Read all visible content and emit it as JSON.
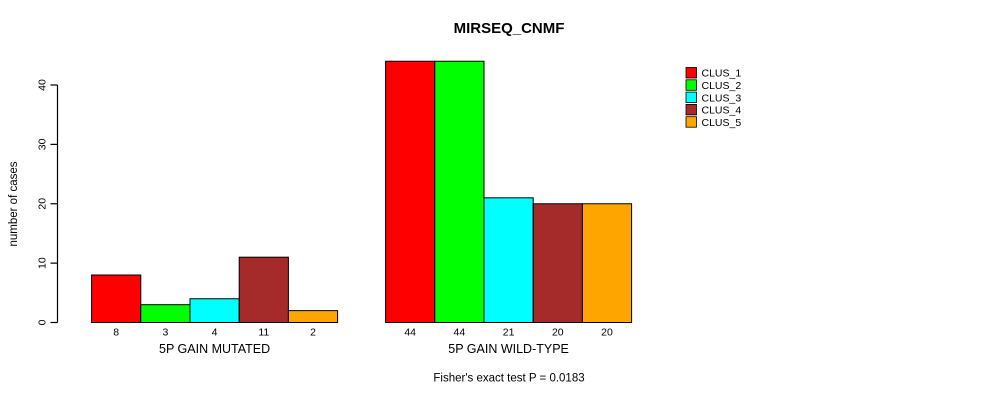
{
  "chart_data": {
    "type": "bar",
    "title": "MIRSEQ_CNMF",
    "ylabel": "number of cases",
    "xlabel": "",
    "annotation": "Fisher's exact test P = 0.0183",
    "categories": [
      "5P GAIN MUTATED",
      "5P GAIN WILD-TYPE"
    ],
    "series": [
      {
        "name": "CLUS_1",
        "color": "#FF0000",
        "values": [
          8,
          44
        ]
      },
      {
        "name": "CLUS_2",
        "color": "#00FF00",
        "values": [
          3,
          44
        ]
      },
      {
        "name": "CLUS_3",
        "color": "#00FFFF",
        "values": [
          4,
          21
        ]
      },
      {
        "name": "CLUS_4",
        "color": "#A52A2A",
        "values": [
          11,
          20
        ]
      },
      {
        "name": "CLUS_5",
        "color": "#FFA500",
        "values": [
          2,
          20
        ]
      }
    ],
    "yticks": [
      0,
      10,
      20,
      30,
      40
    ],
    "ylim": [
      0,
      46
    ],
    "grid": false,
    "bar_value_labels": true,
    "legend_position": "top-right",
    "bar_outline_color": "#000000",
    "axis_color": "#000000",
    "background_color": "#ffffff"
  }
}
